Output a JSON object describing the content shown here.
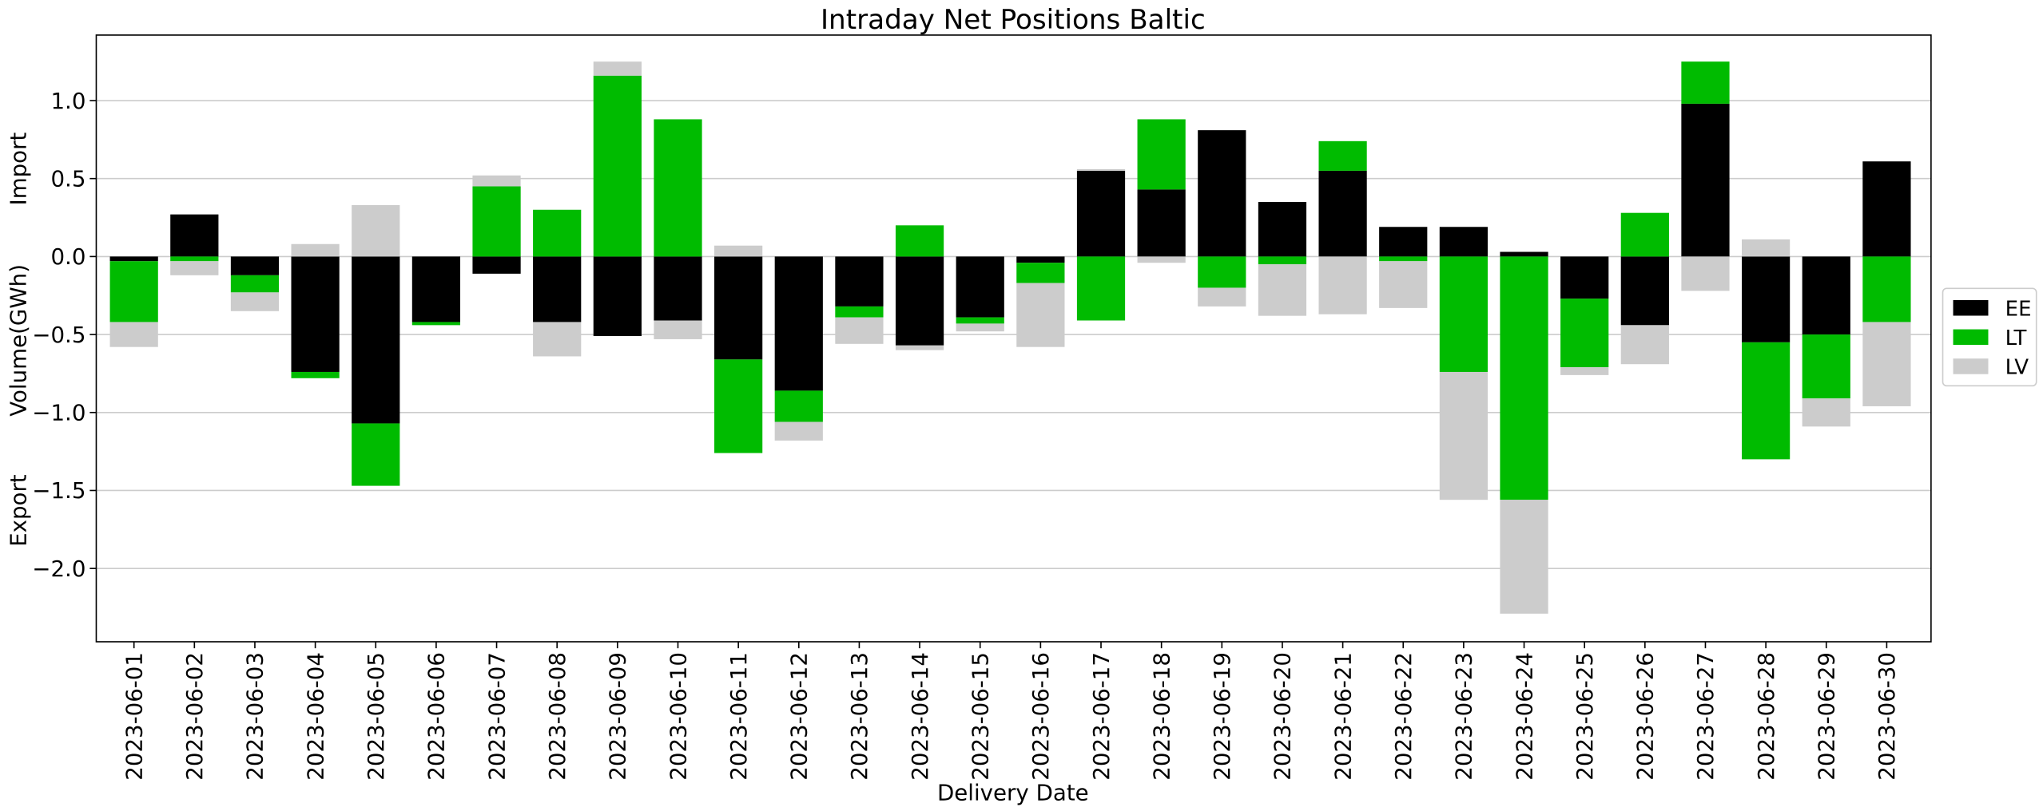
{
  "chart_data": {
    "type": "bar",
    "stacked": true,
    "title": "Intraday Net Positions Baltic",
    "xlabel": "Delivery Date",
    "ylabel_annotations": [
      "Import",
      "Volume(GWh)",
      "Export"
    ],
    "categories": [
      "2023-06-01",
      "2023-06-02",
      "2023-06-03",
      "2023-06-04",
      "2023-06-05",
      "2023-06-06",
      "2023-06-07",
      "2023-06-08",
      "2023-06-09",
      "2023-06-10",
      "2023-06-11",
      "2023-06-12",
      "2023-06-13",
      "2023-06-14",
      "2023-06-15",
      "2023-06-16",
      "2023-06-17",
      "2023-06-18",
      "2023-06-19",
      "2023-06-20",
      "2023-06-21",
      "2023-06-22",
      "2023-06-23",
      "2023-06-24",
      "2023-06-25",
      "2023-06-26",
      "2023-06-27",
      "2023-06-28",
      "2023-06-29",
      "2023-06-30"
    ],
    "series": [
      {
        "name": "EE",
        "color": "#000000",
        "values": [
          -0.03,
          0.27,
          -0.12,
          -0.74,
          -1.07,
          -0.42,
          -0.11,
          -0.42,
          -0.51,
          -0.41,
          -0.66,
          -0.86,
          -0.32,
          -0.57,
          -0.39,
          -0.04,
          0.55,
          0.43,
          0.81,
          0.35,
          0.55,
          0.19,
          0.19,
          0.03,
          -0.27,
          -0.44,
          0.98,
          -0.55,
          -0.5,
          0.61
        ]
      },
      {
        "name": "LT",
        "color": "#00bb00",
        "values": [
          -0.39,
          -0.03,
          -0.11,
          -0.04,
          -0.4,
          -0.02,
          0.45,
          0.3,
          1.16,
          0.88,
          -0.6,
          -0.2,
          -0.07,
          0.2,
          -0.04,
          -0.13,
          -0.41,
          0.45,
          -0.2,
          -0.05,
          0.19,
          -0.03,
          -0.74,
          -1.56,
          -0.44,
          0.28,
          0.27,
          -0.75,
          -0.41,
          -0.42
        ]
      },
      {
        "name": "LV",
        "color": "#cccccc",
        "values": [
          -0.16,
          -0.09,
          -0.12,
          0.08,
          0.33,
          0,
          0.07,
          -0.22,
          0.09,
          -0.12,
          0.07,
          -0.12,
          -0.17,
          -0.03,
          -0.05,
          -0.41,
          0.01,
          -0.04,
          -0.12,
          -0.33,
          -0.37,
          -0.3,
          -0.82,
          -0.73,
          -0.05,
          -0.25,
          -0.22,
          0.11,
          -0.18,
          -0.54
        ]
      }
    ],
    "ylim": [
      -2.47,
      1.42
    ],
    "yticks": [
      {
        "value": -2,
        "label": "−2.0"
      },
      {
        "value": -1.5,
        "label": "−1.5"
      },
      {
        "value": -1,
        "label": "−1.0"
      },
      {
        "value": -0.5,
        "label": "−0.5"
      },
      {
        "value": 0,
        "label": "0.0"
      },
      0.5,
      {
        "value": 1,
        "label": "1.0"
      }
    ],
    "grid": true,
    "legend": "right"
  }
}
